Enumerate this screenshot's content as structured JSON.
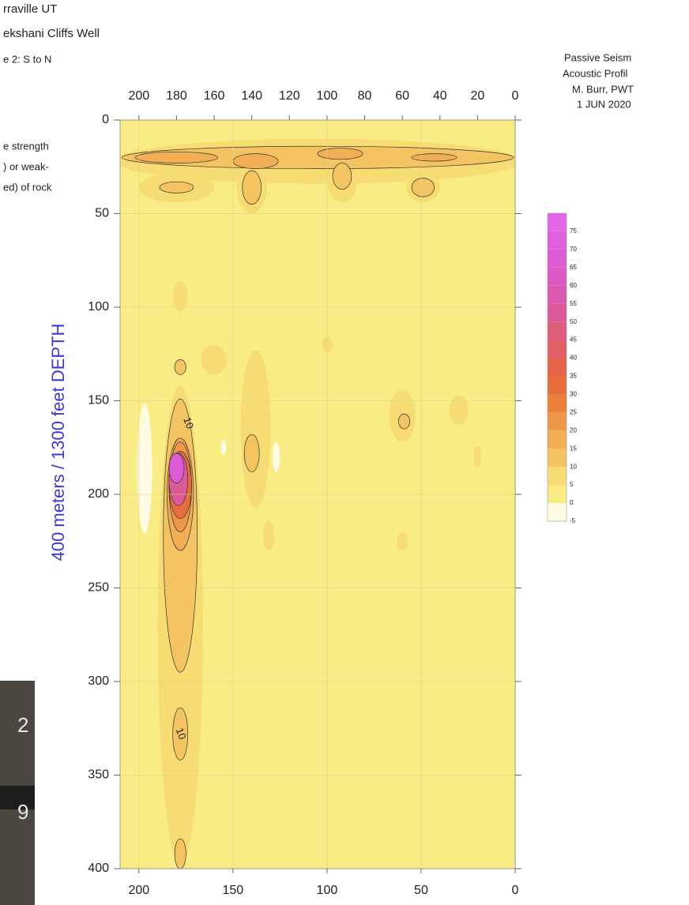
{
  "chart_data": {
    "type": "contour",
    "header": [
      "rraville UT",
      "ekshani Cliffs Well",
      "e 2: S to N"
    ],
    "credits": [
      "Passive Seism",
      "Acoustic Profil",
      "M. Burr, PWT",
      "1 JUN 2020"
    ],
    "legend_note": [
      "e strength",
      ") or weak-",
      "ed) of rock"
    ],
    "ylabel": "400 meters / 1300 feet DEPTH",
    "photo_digits": [
      "2",
      "9"
    ],
    "xlim": [
      210,
      0
    ],
    "ylim": [
      0,
      400
    ],
    "xticks": [
      200,
      150,
      100,
      50,
      0
    ],
    "xticks_top": [
      200,
      180,
      160,
      140,
      120,
      100,
      80,
      60,
      40,
      20,
      0
    ],
    "yticks": [
      0,
      50,
      100,
      150,
      200,
      250,
      300,
      350,
      400
    ],
    "grid": true,
    "clim": [
      -5,
      80
    ],
    "levels": [
      -5,
      0,
      5,
      10,
      15,
      20,
      25,
      30,
      35,
      40,
      45,
      50,
      55,
      60,
      65,
      70,
      75
    ],
    "level_colors": [
      "#fffbe2",
      "#f9ec84",
      "#f6dc72",
      "#f4c462",
      "#f1ae55",
      "#ef9748",
      "#ec7f3a",
      "#e76e3c",
      "#e3644a",
      "#e05f64",
      "#de5c7e",
      "#dd5a98",
      "#dc59b0",
      "#dc5ac4",
      "#dd5cd4",
      "#e060e0",
      "#e467e8"
    ],
    "blobs": [
      {
        "level": 5,
        "x": 105,
        "y": 22,
        "rx": 108,
        "ry": 12
      },
      {
        "level": 5,
        "x": 180,
        "y": 36,
        "rx": 20,
        "ry": 8
      },
      {
        "level": 5,
        "x": 140,
        "y": 36,
        "rx": 8,
        "ry": 14
      },
      {
        "level": 5,
        "x": 92,
        "y": 32,
        "rx": 8,
        "ry": 12
      },
      {
        "level": 5,
        "x": 49,
        "y": 36,
        "rx": 9,
        "ry": 8
      },
      {
        "level": 10,
        "x": 105,
        "y": 20,
        "rx": 104,
        "ry": 6
      },
      {
        "level": 10,
        "x": 180,
        "y": 36,
        "rx": 9,
        "ry": 3
      },
      {
        "level": 10,
        "x": 140,
        "y": 36,
        "rx": 5,
        "ry": 9
      },
      {
        "level": 10,
        "x": 92,
        "y": 30,
        "rx": 5,
        "ry": 7
      },
      {
        "level": 10,
        "x": 49,
        "y": 36,
        "rx": 6,
        "ry": 5
      },
      {
        "level": 15,
        "x": 180,
        "y": 20,
        "rx": 22,
        "ry": 3
      },
      {
        "level": 15,
        "x": 138,
        "y": 22,
        "rx": 12,
        "ry": 4
      },
      {
        "level": 15,
        "x": 93,
        "y": 18,
        "rx": 12,
        "ry": 3
      },
      {
        "level": 15,
        "x": 43,
        "y": 20,
        "rx": 12,
        "ry": 2
      },
      {
        "level": 5,
        "x": 178,
        "y": 270,
        "rx": 12,
        "ry": 128
      },
      {
        "level": 5,
        "x": 178,
        "y": 94,
        "rx": 4,
        "ry": 8
      },
      {
        "level": 5,
        "x": 160,
        "y": 128,
        "rx": 7,
        "ry": 8
      },
      {
        "level": 5,
        "x": 138,
        "y": 165,
        "rx": 8,
        "ry": 42
      },
      {
        "level": 5,
        "x": 60,
        "y": 158,
        "rx": 7,
        "ry": 14
      },
      {
        "level": 5,
        "x": 30,
        "y": 155,
        "rx": 5,
        "ry": 8
      },
      {
        "level": 5,
        "x": 20,
        "y": 180,
        "rx": 2,
        "ry": 6
      },
      {
        "level": 5,
        "x": 100,
        "y": 120,
        "rx": 3,
        "ry": 4
      },
      {
        "level": 5,
        "x": 131,
        "y": 222,
        "rx": 3,
        "ry": 8
      },
      {
        "level": 5,
        "x": 60,
        "y": 225,
        "rx": 3,
        "ry": 5
      },
      {
        "level": 10,
        "x": 178,
        "y": 222,
        "rx": 9,
        "ry": 73
      },
      {
        "level": 10,
        "x": 178,
        "y": 132,
        "rx": 3,
        "ry": 4
      },
      {
        "level": 10,
        "x": 178,
        "y": 328,
        "rx": 4,
        "ry": 14
      },
      {
        "level": 10,
        "x": 178,
        "y": 392,
        "rx": 3,
        "ry": 8
      },
      {
        "level": 10,
        "x": 140,
        "y": 178,
        "rx": 4,
        "ry": 10
      },
      {
        "level": 10,
        "x": 59,
        "y": 161,
        "rx": 3,
        "ry": 4
      },
      {
        "level": 15,
        "x": 178,
        "y": 200,
        "rx": 7,
        "ry": 30
      },
      {
        "level": 20,
        "x": 178,
        "y": 196,
        "rx": 6,
        "ry": 24
      },
      {
        "level": 30,
        "x": 178,
        "y": 195,
        "rx": 6,
        "ry": 18
      },
      {
        "level": 50,
        "x": 179,
        "y": 192,
        "rx": 5,
        "ry": 14
      },
      {
        "level": 65,
        "x": 180,
        "y": 186,
        "rx": 4,
        "ry": 8
      },
      {
        "level": -5,
        "x": 197,
        "y": 186,
        "rx": 4,
        "ry": 35
      },
      {
        "level": -5,
        "x": 127,
        "y": 180,
        "rx": 2,
        "ry": 8
      },
      {
        "level": -5,
        "x": 155,
        "y": 175,
        "rx": 1.5,
        "ry": 4
      }
    ],
    "contour_labels": [
      {
        "text": "10",
        "x": 174,
        "y": 162
      },
      {
        "text": "10",
        "x": 178,
        "y": 328
      }
    ]
  }
}
